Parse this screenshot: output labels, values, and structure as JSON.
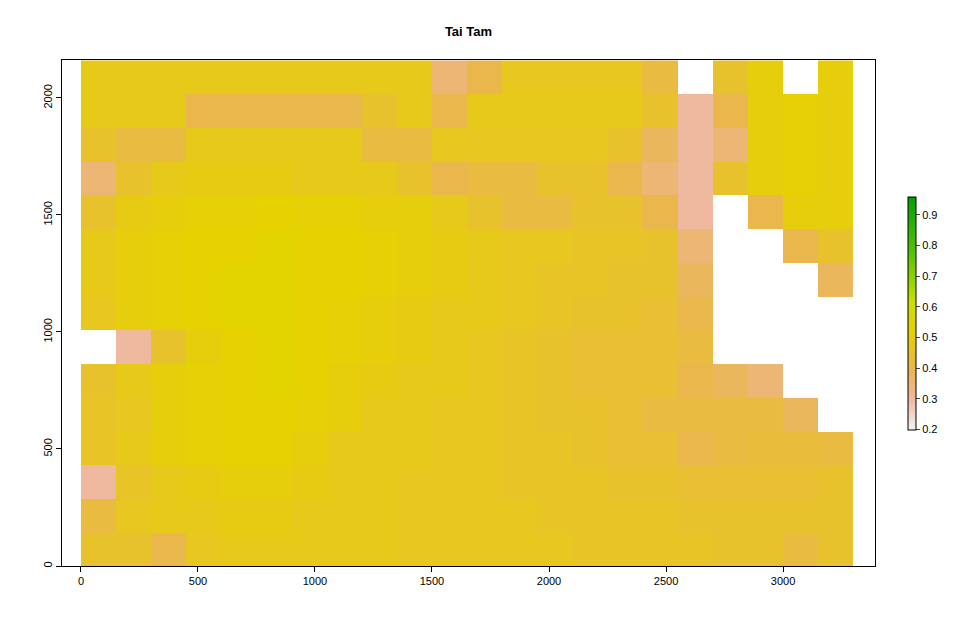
{
  "chart_data": {
    "type": "heatmap",
    "title": "Tai Tam",
    "grid": false,
    "xlim": [
      -81,
      3393
    ],
    "ylim": [
      0,
      2162
    ],
    "xticks": [
      0,
      500,
      1000,
      1500,
      2000,
      2500,
      3000
    ],
    "yticks": [
      0,
      500,
      1000,
      1500,
      2000
    ],
    "x": [
      75,
      225,
      375,
      525,
      675,
      825,
      975,
      1125,
      1275,
      1425,
      1575,
      1725,
      1875,
      2025,
      2175,
      2325,
      2475,
      2625,
      2775,
      2925,
      3075,
      3225
    ],
    "y": [
      72,
      216,
      360,
      504,
      648,
      792,
      936,
      1080,
      1224,
      1368,
      1512,
      1656,
      1800,
      1944,
      2088
    ],
    "cells": [
      [
        0.45,
        0.45,
        0.4,
        0.47,
        0.48,
        0.48,
        0.48,
        0.48,
        0.48,
        0.47,
        0.47,
        0.47,
        0.47,
        0.47,
        0.46,
        0.46,
        0.46,
        0.46,
        0.45,
        0.45,
        0.42,
        0.45
      ],
      [
        0.42,
        0.47,
        0.48,
        0.48,
        0.49,
        0.49,
        0.48,
        0.48,
        0.48,
        0.47,
        0.47,
        0.47,
        0.47,
        0.46,
        0.46,
        0.46,
        0.46,
        0.45,
        0.45,
        0.45,
        0.45,
        0.45
      ],
      [
        0.3,
        0.46,
        0.48,
        0.49,
        0.5,
        0.5,
        0.49,
        0.48,
        0.48,
        0.47,
        0.47,
        0.47,
        0.46,
        0.46,
        0.46,
        0.45,
        0.45,
        0.44,
        0.44,
        0.44,
        0.44,
        0.45
      ],
      [
        0.46,
        0.48,
        0.5,
        0.51,
        0.52,
        0.52,
        0.5,
        0.48,
        0.48,
        0.48,
        0.47,
        0.47,
        0.46,
        0.46,
        0.45,
        0.44,
        0.44,
        0.4,
        0.42,
        0.43,
        0.43,
        0.42
      ],
      [
        0.46,
        0.47,
        0.5,
        0.51,
        0.52,
        0.52,
        0.51,
        0.5,
        0.48,
        0.48,
        0.47,
        0.47,
        0.46,
        0.45,
        0.45,
        0.44,
        0.42,
        0.42,
        0.42,
        0.42,
        0.38,
        null
      ],
      [
        0.45,
        0.48,
        0.5,
        0.51,
        0.52,
        0.53,
        0.52,
        0.5,
        0.49,
        0.48,
        0.48,
        0.47,
        0.46,
        0.45,
        0.44,
        0.44,
        0.44,
        0.4,
        0.38,
        0.35,
        null,
        null
      ],
      [
        null,
        0.3,
        0.45,
        0.5,
        0.52,
        0.53,
        0.52,
        0.51,
        0.5,
        0.49,
        0.48,
        0.47,
        0.46,
        0.45,
        0.44,
        0.44,
        0.44,
        0.42,
        null,
        null,
        null,
        null
      ],
      [
        0.47,
        0.5,
        0.51,
        0.52,
        0.53,
        0.53,
        0.52,
        0.51,
        0.5,
        0.49,
        0.48,
        0.48,
        0.47,
        0.46,
        0.45,
        0.45,
        0.44,
        0.4,
        null,
        null,
        null,
        null
      ],
      [
        0.48,
        0.5,
        0.51,
        0.52,
        0.53,
        0.53,
        0.52,
        0.52,
        0.51,
        0.5,
        0.49,
        0.48,
        0.47,
        0.46,
        0.46,
        0.45,
        0.45,
        0.38,
        null,
        null,
        null,
        0.38
      ],
      [
        0.48,
        0.5,
        0.51,
        0.52,
        0.52,
        0.53,
        0.52,
        0.52,
        0.51,
        0.5,
        0.49,
        0.48,
        0.47,
        0.47,
        0.46,
        0.46,
        0.45,
        0.35,
        null,
        null,
        0.4,
        0.45
      ],
      [
        0.45,
        0.49,
        0.5,
        0.51,
        0.51,
        0.52,
        0.51,
        0.51,
        0.5,
        0.5,
        0.48,
        0.45,
        0.42,
        0.42,
        0.45,
        0.45,
        0.4,
        0.3,
        null,
        0.4,
        0.5,
        0.5
      ],
      [
        0.35,
        0.45,
        0.48,
        0.49,
        0.49,
        0.49,
        0.48,
        0.48,
        0.48,
        0.45,
        0.4,
        0.42,
        0.42,
        0.45,
        0.45,
        0.4,
        0.35,
        0.3,
        0.45,
        0.5,
        0.51,
        0.5
      ],
      [
        0.45,
        0.42,
        0.42,
        0.48,
        0.48,
        0.48,
        0.48,
        0.48,
        0.42,
        0.42,
        0.47,
        0.47,
        0.47,
        0.47,
        0.47,
        0.45,
        0.38,
        0.3,
        0.35,
        0.5,
        0.51,
        0.5
      ],
      [
        0.48,
        0.48,
        0.48,
        0.4,
        0.4,
        0.4,
        0.4,
        0.4,
        0.45,
        0.48,
        0.4,
        0.48,
        0.48,
        0.48,
        0.48,
        0.48,
        0.45,
        0.3,
        0.4,
        0.5,
        0.51,
        0.5
      ],
      [
        0.48,
        0.48,
        0.48,
        0.48,
        0.48,
        0.48,
        0.48,
        0.48,
        0.48,
        0.48,
        0.35,
        0.4,
        0.47,
        0.47,
        0.47,
        0.47,
        0.42,
        null,
        0.45,
        0.5,
        null,
        0.5
      ]
    ],
    "colorbar_range": [
      0.2,
      0.96
    ],
    "colorbar_ticks": [
      0.2,
      0.3,
      0.4,
      0.5,
      0.6,
      0.7,
      0.8,
      0.9
    ]
  }
}
